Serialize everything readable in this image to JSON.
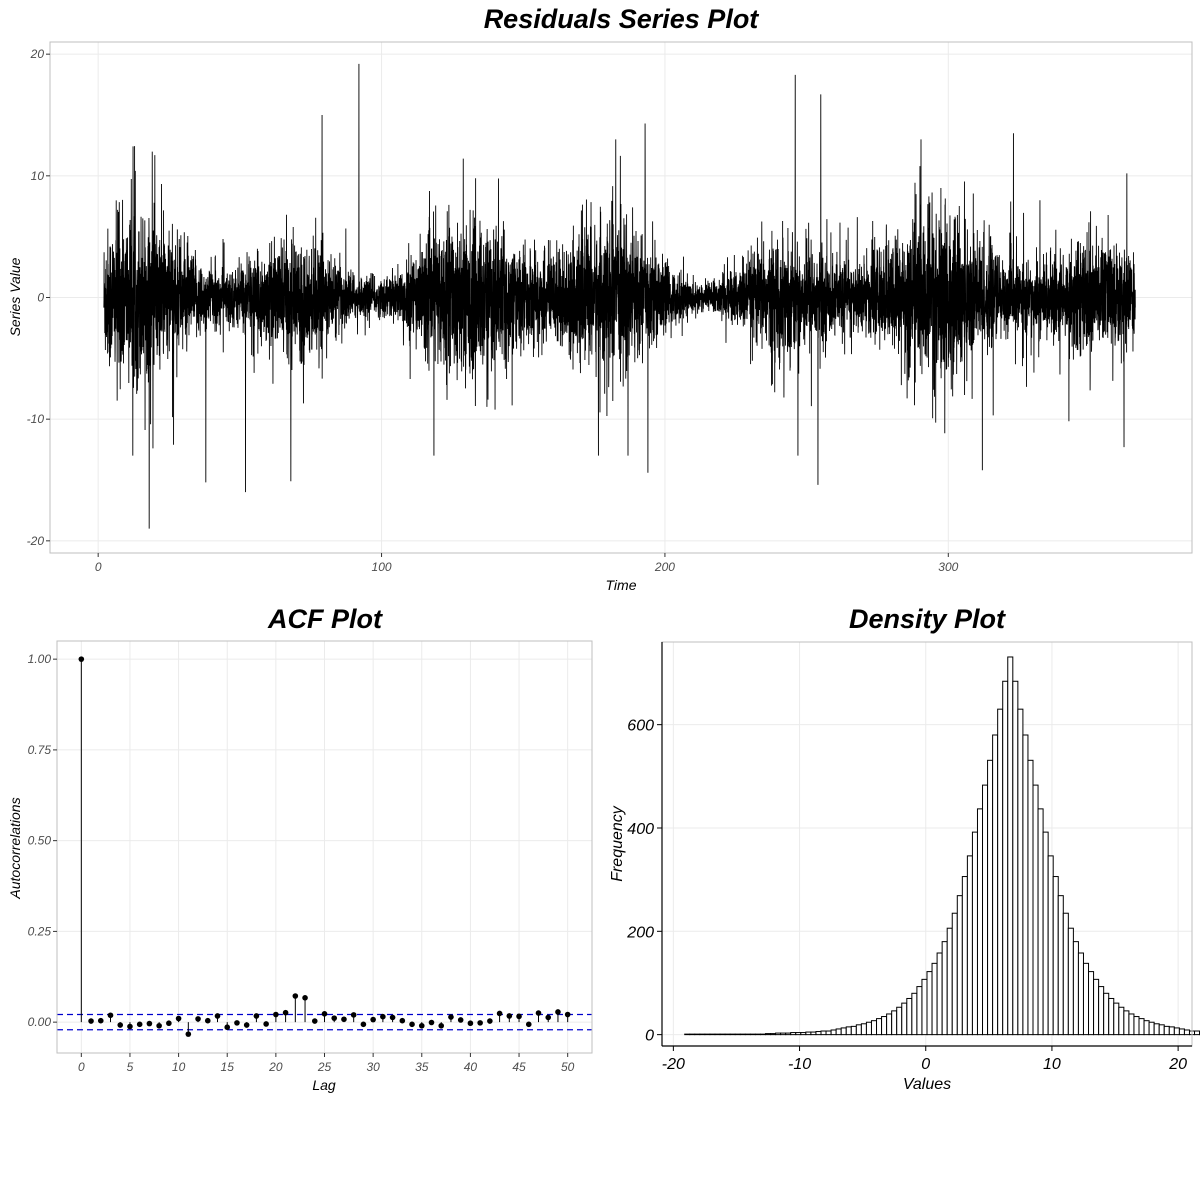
{
  "chart_data": [
    {
      "type": "line",
      "title": "Residuals Series Plot",
      "xlabel": "Time",
      "ylabel": "Series Value",
      "xlim": [
        -17,
        386
      ],
      "ylim": [
        -21,
        21
      ],
      "xticks": [
        0,
        100,
        200,
        300
      ],
      "yticks": [
        -20,
        -10,
        0,
        10,
        20
      ],
      "grid": true,
      "x_range": [
        2,
        366
      ],
      "n_points": 8760,
      "series": [
        {
          "color": "#000000"
        }
      ],
      "peaks": [
        {
          "x": 18,
          "y": -19.0
        },
        {
          "x": 92,
          "y": 19.2
        },
        {
          "x": 246,
          "y": 18.3
        },
        {
          "x": 255,
          "y": 16.7
        },
        {
          "x": 254,
          "y": -15.4
        },
        {
          "x": 52,
          "y": -16.0
        },
        {
          "x": 20,
          "y": 11.7
        },
        {
          "x": 79,
          "y": 15.0
        },
        {
          "x": 193,
          "y": 14.3
        },
        {
          "x": 194,
          "y": -14.4
        },
        {
          "x": 38,
          "y": -15.2
        },
        {
          "x": 68,
          "y": -15.1
        },
        {
          "x": 323,
          "y": 13.5
        },
        {
          "x": 312,
          "y": -14.2
        },
        {
          "x": 363,
          "y": 10.2
        },
        {
          "x": 362,
          "y": -12.3
        }
      ]
    },
    {
      "type": "scatter",
      "title": "ACF Plot",
      "xlabel": "Lag",
      "ylabel": "Autocorrelations",
      "xlim": [
        -2.5,
        52.5
      ],
      "ylim": [
        -0.085,
        1.05
      ],
      "xticks": [
        0,
        5,
        10,
        15,
        20,
        25,
        30,
        35,
        40,
        45,
        50
      ],
      "yticks": [
        0.0,
        0.25,
        0.5,
        0.75,
        1.0
      ],
      "ytick_labels": [
        "0.00",
        "0.25",
        "0.50",
        "0.75",
        "1.00"
      ],
      "grid": true,
      "confidence_bounds": [
        0.021,
        -0.021
      ],
      "confidence_color": "#0000cd",
      "lags": [
        0,
        1,
        2,
        3,
        4,
        5,
        6,
        7,
        8,
        9,
        10,
        11,
        12,
        13,
        14,
        15,
        16,
        17,
        18,
        19,
        20,
        21,
        22,
        23,
        24,
        25,
        26,
        27,
        28,
        29,
        30,
        31,
        32,
        33,
        34,
        35,
        36,
        37,
        38,
        39,
        40,
        41,
        42,
        43,
        44,
        45,
        46,
        47,
        48,
        49,
        50
      ],
      "values": [
        1.0,
        0.003,
        0.004,
        0.019,
        -0.008,
        -0.012,
        -0.006,
        -0.004,
        -0.01,
        -0.003,
        0.01,
        -0.033,
        0.009,
        0.004,
        0.017,
        -0.014,
        -0.002,
        -0.008,
        0.017,
        -0.005,
        0.021,
        0.026,
        0.072,
        0.067,
        0.003,
        0.023,
        0.011,
        0.008,
        0.02,
        -0.006,
        0.007,
        0.015,
        0.013,
        0.004,
        -0.006,
        -0.01,
        -0.001,
        -0.01,
        0.014,
        0.006,
        -0.003,
        -0.002,
        0.003,
        0.024,
        0.017,
        0.016,
        -0.006,
        0.025,
        0.013,
        0.028,
        0.021
      ]
    },
    {
      "type": "bar",
      "title": "Density Plot",
      "xlabel": "Values",
      "ylabel": "Frequency",
      "xlim": [
        -20.9,
        21.1
      ],
      "ylim": [
        -22,
        760
      ],
      "xticks": [
        -20,
        -10,
        0,
        10,
        20
      ],
      "yticks": [
        0,
        200,
        400,
        600
      ],
      "grid": true,
      "bin_start": -19.1,
      "bin_width": 0.4,
      "counts": [
        1,
        1,
        1,
        1,
        1,
        1,
        1,
        1,
        1,
        1,
        1,
        1,
        1,
        1,
        1,
        1,
        2,
        2,
        3,
        3,
        3,
        4,
        4,
        4,
        5,
        5,
        6,
        7,
        7,
        9,
        11,
        13,
        15,
        16,
        19,
        21,
        24,
        27,
        31,
        35,
        40,
        46,
        53,
        61,
        70,
        80,
        93,
        107,
        122,
        138,
        158,
        180,
        206,
        235,
        269,
        306,
        346,
        392,
        437,
        483,
        531,
        580,
        630,
        684,
        731,
        684,
        630,
        580,
        531,
        483,
        437,
        392,
        346,
        306,
        269,
        235,
        206,
        180,
        158,
        138,
        122,
        107,
        93,
        80,
        70,
        61,
        53,
        46,
        40,
        35,
        31,
        27,
        24,
        21,
        19,
        16,
        15,
        13,
        11,
        9,
        7,
        7,
        6,
        5,
        5,
        4,
        4,
        4,
        3,
        3,
        3,
        2,
        2,
        1,
        1,
        1,
        1,
        1,
        1,
        1,
        1,
        1,
        1,
        1,
        1,
        1,
        1,
        1
      ]
    }
  ]
}
